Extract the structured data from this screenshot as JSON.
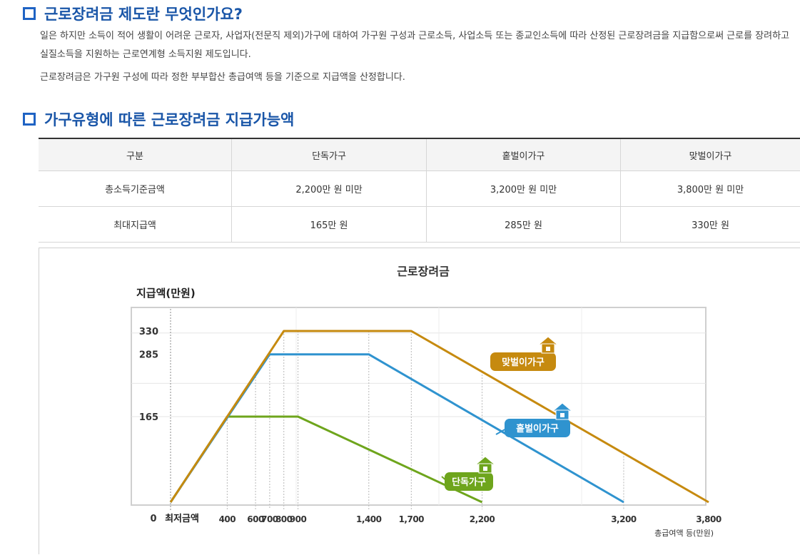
{
  "section1": {
    "title": "근로장려금 제도란 무엇인가요?",
    "para1": "일은 하지만 소득이 적어 생활이 어려운 근로자, 사업자(전문직 제외)가구에 대하여 가구원 구성과 근로소득, 사업소득 또는 종교인소득에 따라 산정된 근로장려금을 지급함으로써 근로를 장려하고 실질소득을 지원하는 근로연계형 소득지원 제도입니다.",
    "para2": "근로장려금은 가구원 구성에 따라 정한 부부합산 총급여액 등을 기준으로 지급액을 산정합니다."
  },
  "section2": {
    "title": "가구유형에 따른 근로장려금 지급가능액"
  },
  "table": {
    "headers": [
      "구분",
      "단독가구",
      "홑벌이가구",
      "맞벌이가구"
    ],
    "rows": [
      [
        "총소득기준금액",
        "2,200만 원 미만",
        "3,200만 원 미만",
        "3,800만 원 미만"
      ],
      [
        "최대지급액",
        "165만 원",
        "285만 원",
        "330만 원"
      ]
    ]
  },
  "chart_data": {
    "type": "line",
    "title": "근로장려금",
    "ylabel": "지급액(만원)",
    "xlabel": "총급여액 등(만원)",
    "x_origin_label": "0",
    "x_min_label": "최저금액",
    "x_ticks": [
      400,
      600,
      700,
      800,
      900,
      1400,
      1700,
      2200,
      3200,
      3800
    ],
    "x_tick_labels": [
      "400",
      "600",
      "700",
      "800",
      "900",
      "1,400",
      "1,700",
      "2,200",
      "3,200",
      "3,800"
    ],
    "y_ticks": [
      165,
      285,
      330
    ],
    "y_tick_labels": [
      "165",
      "285",
      "330"
    ],
    "xlim": [
      0,
      3800
    ],
    "ylim": [
      0,
      330
    ],
    "series": [
      {
        "name": "단독가구",
        "color": "#6ea51c",
        "x": [
          0,
          400,
          900,
          2200
        ],
        "y": [
          0,
          165,
          165,
          0
        ]
      },
      {
        "name": "홑벌이가구",
        "color": "#2f93cf",
        "x": [
          0,
          700,
          1400,
          3200
        ],
        "y": [
          0,
          285,
          285,
          0
        ]
      },
      {
        "name": "맞벌이가구",
        "color": "#c68a0f",
        "x": [
          0,
          800,
          1700,
          3800
        ],
        "y": [
          0,
          330,
          330,
          0
        ]
      }
    ],
    "grid": true
  }
}
